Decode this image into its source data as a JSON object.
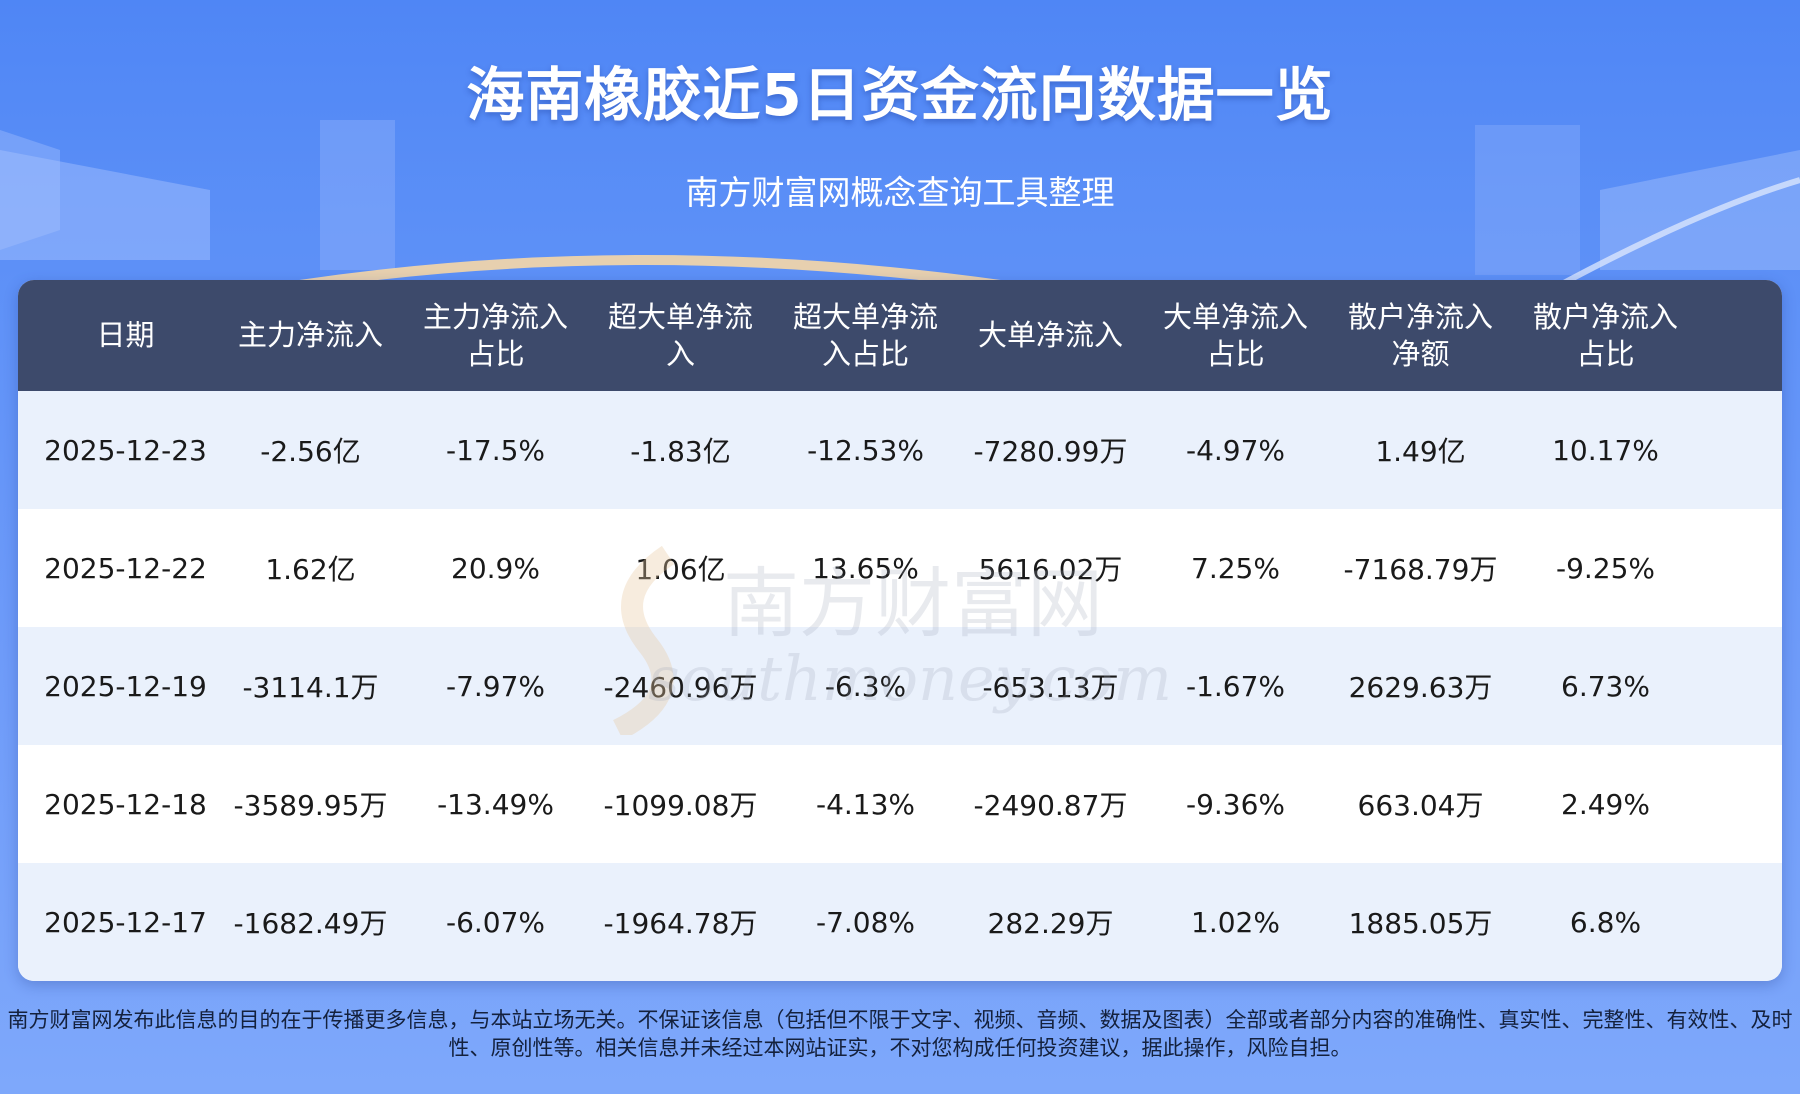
{
  "title": "海南橡胶近5日资金流向数据一览",
  "subtitle": "南方财富网概念查询工具整理",
  "chart_data": {
    "type": "table",
    "columns": [
      "日期",
      "主力净流入",
      "主力净流入\n占比",
      "超大单净流\n入",
      "超大单净流\n入占比",
      "大单净流入",
      "大单净流入\n占比",
      "散户净流入\n净额",
      "散户净流入\n占比"
    ],
    "rows": [
      [
        "2025-12-23",
        "-2.56亿",
        "-17.5%",
        "-1.83亿",
        "-12.53%",
        "-7280.99万",
        "-4.97%",
        "1.49亿",
        "10.17%"
      ],
      [
        "2025-12-22",
        "1.62亿",
        "20.9%",
        "1.06亿",
        "13.65%",
        "5616.02万",
        "7.25%",
        "-7168.79万",
        "-9.25%"
      ],
      [
        "2025-12-19",
        "-3114.1万",
        "-7.97%",
        "-2460.96万",
        "-6.3%",
        "-653.13万",
        "-1.67%",
        "2629.63万",
        "6.73%"
      ],
      [
        "2025-12-18",
        "-3589.95万",
        "-13.49%",
        "-1099.08万",
        "-4.13%",
        "-2490.87万",
        "-9.36%",
        "663.04万",
        "2.49%"
      ],
      [
        "2025-12-17",
        "-1682.49万",
        "-6.07%",
        "-1964.78万",
        "-7.08%",
        "282.29万",
        "1.02%",
        "1885.05万",
        "6.8%"
      ]
    ]
  },
  "watermark": {
    "cn": "南方财富网",
    "en": "southmoney.com"
  },
  "footer": "南方财富网发布此信息的目的在于传播更多信息，与本站立场无关。不保证该信息（包括但不限于文字、视频、音频、数据及图表）全部或者部分内容的准确性、真实性、完整性、有效性、及时性、原创性等。相关信息并未经过本网站证实，不对您构成任何投资建议，据此操作，风险自担。",
  "colors": {
    "header_bg": "#3d4a6b",
    "row_alt": "#eaf1fc",
    "background": "#5b8ff7"
  }
}
